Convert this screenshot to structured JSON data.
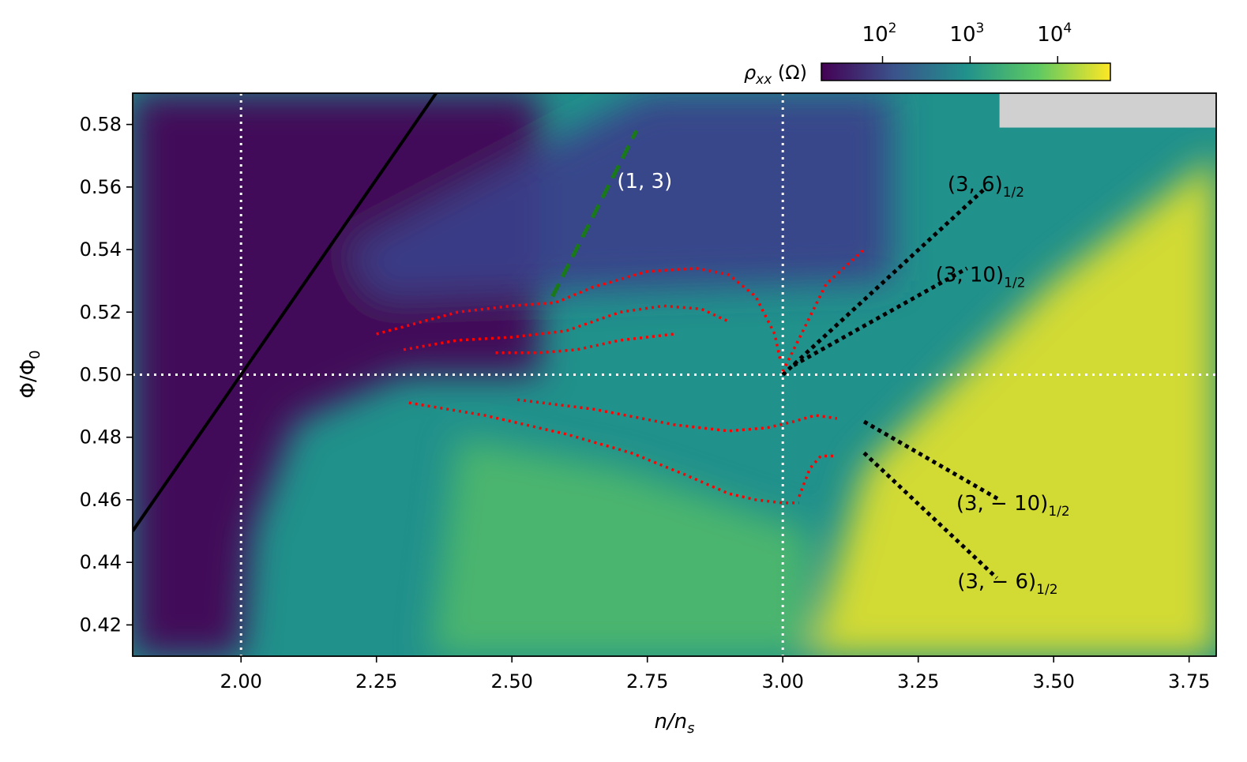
{
  "chart_data": {
    "type": "heatmap",
    "title": "",
    "xlabel": "n/n",
    "xlabel_sub": "s",
    "ylabel": "Φ/Φ",
    "ylabel_sub": "0",
    "xlim": [
      1.8,
      3.8
    ],
    "ylim": [
      0.41,
      0.59
    ],
    "xticks": [
      2.0,
      2.25,
      2.5,
      2.75,
      3.0,
      3.25,
      3.5,
      3.75
    ],
    "xtick_labels": [
      "2.00",
      "2.25",
      "2.50",
      "2.75",
      "3.00",
      "3.25",
      "3.50",
      "3.75"
    ],
    "yticks": [
      0.42,
      0.44,
      0.46,
      0.48,
      0.5,
      0.52,
      0.54,
      0.56,
      0.58
    ],
    "ytick_labels": [
      "0.42",
      "0.44",
      "0.46",
      "0.48",
      "0.50",
      "0.52",
      "0.54",
      "0.56",
      "0.58"
    ],
    "colorbar": {
      "label": "ρ",
      "label_sub": "xx",
      "label_unit": " (Ω)",
      "scale": "log",
      "range": [
        20,
        40000
      ],
      "ticks": [
        100,
        1000,
        10000
      ],
      "tick_labels": [
        {
          "base": "10",
          "exp": "2"
        },
        {
          "base": "10",
          "exp": "3"
        },
        {
          "base": "10",
          "exp": "4"
        }
      ],
      "colormap": [
        "#440154",
        "#3b528b",
        "#21918c",
        "#5ec962",
        "#fde725"
      ]
    },
    "reference_lines": [
      {
        "orientation": "vertical",
        "value": 2.0,
        "color": "#ffffff",
        "style": "dotted"
      },
      {
        "orientation": "vertical",
        "value": 3.0,
        "color": "#ffffff",
        "style": "dotted"
      },
      {
        "orientation": "horizontal",
        "value": 0.5,
        "color": "#ffffff",
        "style": "dotted"
      }
    ],
    "fits": [
      {
        "name": "black-solid-line",
        "color": "#000000",
        "style": "solid",
        "points": [
          [
            1.8,
            0.45
          ],
          [
            2.36,
            0.59
          ]
        ]
      },
      {
        "name": "green-dashed-line",
        "color": "#1a7a1a",
        "style": "dashed",
        "points": [
          [
            2.575,
            0.525
          ],
          [
            2.73,
            0.578
          ]
        ]
      },
      {
        "name": "black-dotted-3-6",
        "color": "#000000",
        "style": "dotted",
        "points": [
          [
            3.0,
            0.5
          ],
          [
            3.37,
            0.559
          ]
        ]
      },
      {
        "name": "black-dotted-3-10",
        "color": "#000000",
        "style": "dotted",
        "points": [
          [
            3.02,
            0.503
          ],
          [
            3.34,
            0.534
          ]
        ]
      },
      {
        "name": "black-dotted-3-m10",
        "color": "#000000",
        "style": "dotted",
        "points": [
          [
            3.15,
            0.485
          ],
          [
            3.4,
            0.46
          ]
        ]
      },
      {
        "name": "black-dotted-3-m6",
        "color": "#000000",
        "style": "dotted",
        "points": [
          [
            3.15,
            0.475
          ],
          [
            3.395,
            0.435
          ]
        ]
      }
    ],
    "traces": [
      {
        "name": "red-trace-1",
        "color": "#ff0000",
        "points": [
          [
            2.25,
            0.513
          ],
          [
            2.4,
            0.52
          ],
          [
            2.5,
            0.522
          ],
          [
            2.58,
            0.523
          ],
          [
            2.65,
            0.528
          ],
          [
            2.75,
            0.533
          ],
          [
            2.84,
            0.534
          ],
          [
            2.9,
            0.532
          ],
          [
            2.95,
            0.525
          ],
          [
            2.985,
            0.513
          ],
          [
            2.995,
            0.505
          ]
        ]
      },
      {
        "name": "red-trace-2",
        "color": "#ff0000",
        "points": [
          [
            2.3,
            0.508
          ],
          [
            2.4,
            0.511
          ],
          [
            2.5,
            0.512
          ],
          [
            2.6,
            0.514
          ],
          [
            2.7,
            0.52
          ],
          [
            2.78,
            0.522
          ],
          [
            2.85,
            0.521
          ],
          [
            2.9,
            0.517
          ]
        ]
      },
      {
        "name": "red-trace-3",
        "color": "#ff0000",
        "points": [
          [
            2.47,
            0.507
          ],
          [
            2.55,
            0.507
          ],
          [
            2.62,
            0.508
          ],
          [
            2.7,
            0.511
          ],
          [
            2.8,
            0.513
          ]
        ]
      },
      {
        "name": "red-trace-4",
        "color": "#ff0000",
        "points": [
          [
            3.0,
            0.501
          ],
          [
            3.04,
            0.515
          ],
          [
            3.08,
            0.529
          ],
          [
            3.15,
            0.54
          ]
        ]
      },
      {
        "name": "red-trace-5",
        "color": "#ff0000",
        "points": [
          [
            2.31,
            0.491
          ],
          [
            2.45,
            0.487
          ],
          [
            2.6,
            0.481
          ],
          [
            2.72,
            0.475
          ],
          [
            2.82,
            0.468
          ],
          [
            2.9,
            0.462
          ],
          [
            2.95,
            0.46
          ],
          [
            3.0,
            0.459
          ],
          [
            3.03,
            0.459
          ]
        ]
      },
      {
        "name": "red-trace-6",
        "color": "#ff0000",
        "points": [
          [
            2.51,
            0.492
          ],
          [
            2.65,
            0.489
          ],
          [
            2.8,
            0.484
          ],
          [
            2.9,
            0.482
          ],
          [
            2.97,
            0.483
          ],
          [
            3.02,
            0.485
          ],
          [
            3.06,
            0.487
          ],
          [
            3.1,
            0.486
          ]
        ]
      },
      {
        "name": "red-trace-7",
        "color": "#ff0000",
        "points": [
          [
            3.03,
            0.461
          ],
          [
            3.05,
            0.47
          ],
          [
            3.07,
            0.474
          ],
          [
            3.1,
            0.474
          ]
        ]
      }
    ],
    "annotations": [
      {
        "name": "label-1-3",
        "text": "(1, 3)",
        "sub": "",
        "x": 2.745,
        "y": 0.562,
        "color": "#ffffff"
      },
      {
        "name": "label-3-6",
        "text": "(3, 6)",
        "sub": "1/2",
        "x": 3.375,
        "y": 0.561,
        "color": "#000000"
      },
      {
        "name": "label-3-10",
        "text": "(3, 10)",
        "sub": "1/2",
        "x": 3.365,
        "y": 0.532,
        "color": "#000000"
      },
      {
        "name": "label-3-m10",
        "text": "(3, − 10)",
        "sub": "1/2",
        "x": 3.425,
        "y": 0.459,
        "color": "#000000"
      },
      {
        "name": "label-3-m6",
        "text": "(3, − 6)",
        "sub": "1/2",
        "x": 3.415,
        "y": 0.434,
        "color": "#000000"
      }
    ],
    "missing_region": {
      "x": [
        3.4,
        3.8
      ],
      "y": [
        0.579,
        0.59
      ],
      "color": "#d0d0d0"
    },
    "background_regions": [
      {
        "name": "low-resistance-left",
        "polygon": [
          [
            1.8,
            0.41
          ],
          [
            1.8,
            0.59
          ],
          [
            2.55,
            0.59
          ],
          [
            2.55,
            0.5
          ],
          [
            2.3,
            0.5
          ],
          [
            2.1,
            0.485
          ],
          [
            2.02,
            0.45
          ],
          [
            2.0,
            0.41
          ]
        ],
        "color": "#440154"
      },
      {
        "name": "noisy-upper",
        "polygon": [
          [
            2.2,
            0.54
          ],
          [
            2.75,
            0.59
          ],
          [
            3.2,
            0.59
          ],
          [
            3.2,
            0.53
          ],
          [
            2.25,
            0.525
          ]
        ],
        "color": "#3b3f8a"
      },
      {
        "name": "high-resistance-right",
        "polygon": [
          [
            3.05,
            0.41
          ],
          [
            3.15,
            0.47
          ],
          [
            3.5,
            0.53
          ],
          [
            3.8,
            0.57
          ],
          [
            3.8,
            0.41
          ]
        ],
        "color": "#e2e12a"
      },
      {
        "name": "green-lower-mid",
        "polygon": [
          [
            2.35,
            0.41
          ],
          [
            2.4,
            0.48
          ],
          [
            2.7,
            0.47
          ],
          [
            3.05,
            0.45
          ],
          [
            3.05,
            0.41
          ]
        ],
        "color": "#4fb96b"
      }
    ]
  }
}
